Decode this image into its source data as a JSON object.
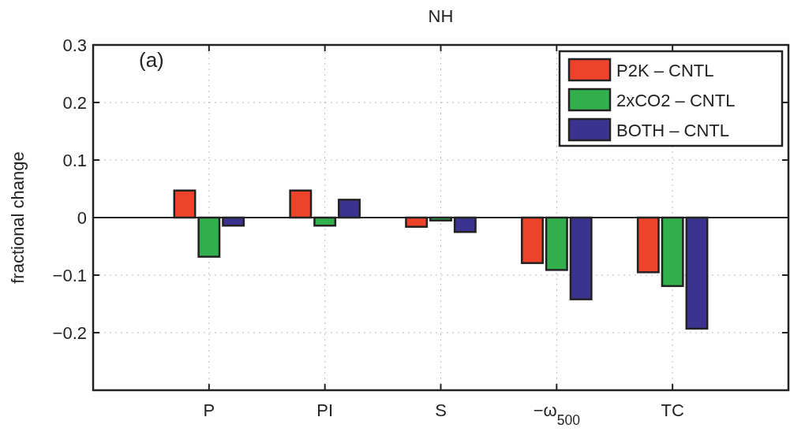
{
  "chart_data": {
    "type": "bar",
    "title": "NH",
    "ylabel": "fractional change",
    "categories": [
      "P",
      "PI",
      "S",
      "−ω$_{500}$",
      "TC"
    ],
    "series": [
      {
        "name": "P2K – CNTL",
        "color": "#ee432b",
        "values": [
          0.047,
          0.047,
          -0.016,
          -0.079,
          -0.095
        ]
      },
      {
        "name": "2xCO2 – CNTL",
        "color": "#31b04d",
        "values": [
          -0.068,
          -0.014,
          -0.005,
          -0.091,
          -0.119
        ]
      },
      {
        "name": "BOTH – CNTL",
        "color": "#3b338f",
        "values": [
          -0.014,
          0.031,
          -0.025,
          -0.142,
          -0.193
        ]
      }
    ],
    "ylim": [
      -0.3,
      0.3
    ],
    "yticks": [
      {
        "value": -0.3,
        "label": null
      },
      -0.2,
      -0.1,
      0,
      0.1,
      0.2,
      0.3
    ],
    "grid": true,
    "legend": "top right",
    "annotations": [
      "(a)"
    ]
  }
}
